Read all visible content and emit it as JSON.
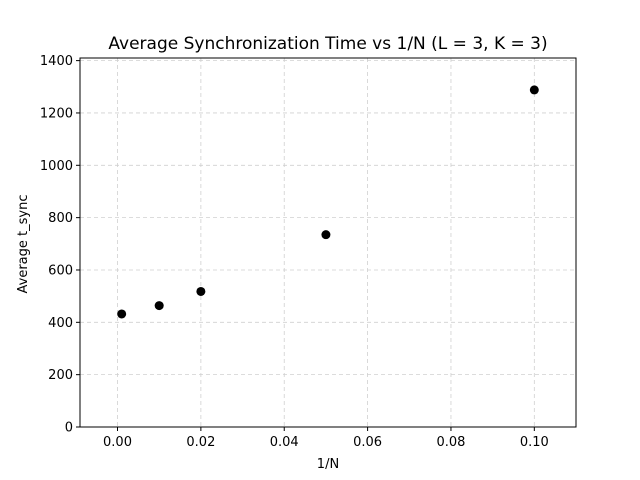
{
  "chart_data": {
    "type": "scatter",
    "title": "Average Synchronization Time vs 1/N (L = 3, K = 3)",
    "xlabel": "1/N",
    "ylabel": "Average t_sync",
    "xlim": [
      -0.009,
      0.11
    ],
    "ylim": [
      0,
      1410
    ],
    "xticks": [
      0.0,
      0.02,
      0.04,
      0.06,
      0.08,
      0.1
    ],
    "xtick_labels": [
      "0.00",
      "0.02",
      "0.04",
      "0.06",
      "0.08",
      "0.10"
    ],
    "yticks": [
      0,
      200,
      400,
      600,
      800,
      1000,
      1200,
      1400
    ],
    "ytick_labels": [
      "0",
      "200",
      "400",
      "600",
      "800",
      "1000",
      "1200",
      "1400"
    ],
    "grid": true,
    "marker_color": "#000000",
    "grid_color": "#d0d0d0",
    "x": [
      0.001,
      0.01,
      0.02,
      0.05,
      0.1
    ],
    "y": [
      432,
      464,
      518,
      735,
      1288
    ]
  }
}
